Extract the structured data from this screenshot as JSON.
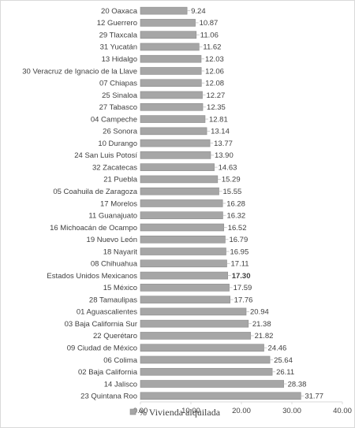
{
  "chart_data": {
    "type": "bar",
    "orientation": "horizontal",
    "categories": [
      "20 Oaxaca",
      "12 Guerrero",
      "29 Tlaxcala",
      "31 Yucatán",
      "13 Hidalgo",
      "30 Veracruz de Ignacio de la Llave",
      "07 Chiapas",
      "25 Sinaloa",
      "27 Tabasco",
      "04 Campeche",
      "26 Sonora",
      "10 Durango",
      "24 San Luis Potosí",
      "32 Zacatecas",
      "21 Puebla",
      "05 Coahuila de Zaragoza",
      "17 Morelos",
      "11 Guanajuato",
      "16 Michoacán de Ocampo",
      "19 Nuevo León",
      "18 Nayarit",
      "08 Chihuahua",
      "Estados Unidos Mexicanos",
      "15 México",
      "28 Tamaulipas",
      "01 Aguascalientes",
      "03 Baja California Sur",
      "22 Querétaro",
      "09 Ciudad de México",
      "06 Colima",
      "02 Baja California",
      "14 Jalisco",
      "23 Quintana Roo"
    ],
    "values": [
      9.24,
      10.87,
      11.06,
      11.62,
      12.03,
      12.06,
      12.08,
      12.27,
      12.35,
      12.81,
      13.14,
      13.77,
      13.9,
      14.63,
      15.29,
      15.55,
      16.28,
      16.32,
      16.52,
      16.79,
      16.95,
      17.11,
      17.3,
      17.59,
      17.76,
      20.94,
      21.38,
      21.82,
      24.46,
      25.64,
      26.11,
      28.38,
      31.77
    ],
    "value_labels": [
      "9.24",
      "10.87",
      "11.06",
      "11.62",
      "12.03",
      "12.06",
      "12.08",
      "12.27",
      "12.35",
      "12.81",
      "13.14",
      "13.77",
      "13.90",
      "14.63",
      "15.29",
      "15.55",
      "16.28",
      "16.32",
      "16.52",
      "16.79",
      "16.95",
      "17.11",
      "17.30",
      "17.59",
      "17.76",
      "20.94",
      "21.38",
      "21.82",
      "24.46",
      "25.64",
      "26.11",
      "28.38",
      "31.77"
    ],
    "highlight": "Estados Unidos Mexicanos",
    "xlim": [
      0,
      40
    ],
    "x_ticks": [
      "0.00",
      "10.00",
      "20.00",
      "30.00",
      "40.00"
    ],
    "series": [
      {
        "name": "% Vivienda alquilada",
        "values": "values"
      }
    ],
    "legend": {
      "label": "% Vivienda alquilada",
      "position": "bottom"
    },
    "grid": false,
    "colors": {
      "bar": "#a6a6a6",
      "bar_edge": "#8c8c8c",
      "text": "#404040",
      "axis": "#d9d9d9",
      "leader": "#bfbfbf"
    }
  }
}
